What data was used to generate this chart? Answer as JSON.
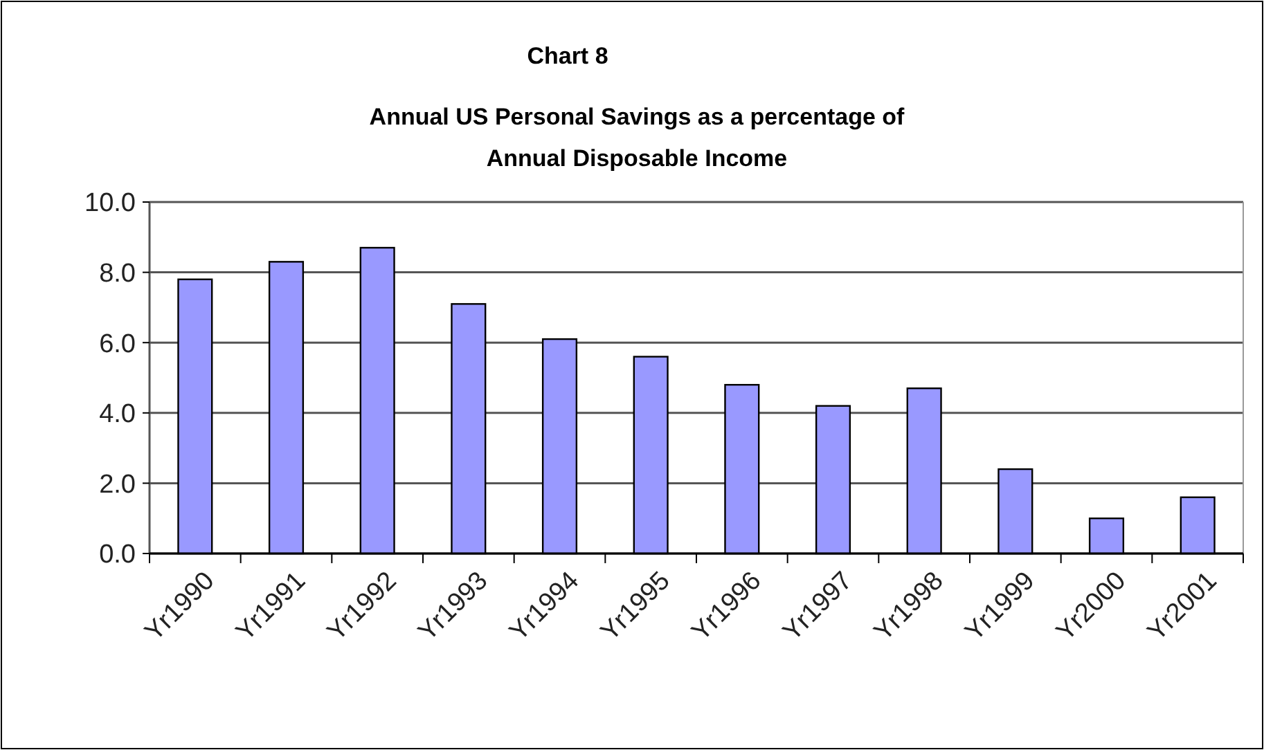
{
  "chart_data": {
    "type": "bar",
    "title": "Chart 8",
    "subtitle": "Annual US Personal Savings as a percentage of Annual Disposable Income",
    "categories": [
      "Yr1990",
      "Yr1991",
      "Yr1992",
      "Yr1993",
      "Yr1994",
      "Yr1995",
      "Yr1996",
      "Yr1997",
      "Yr1998",
      "Yr1999",
      "Yr2000",
      "Yr2001"
    ],
    "values": [
      7.8,
      8.3,
      8.7,
      7.1,
      6.1,
      5.6,
      4.8,
      4.2,
      4.7,
      2.4,
      1.0,
      1.6
    ],
    "color": "#9999ff",
    "ylim": [
      0,
      10
    ],
    "yticks": [
      {
        "value": 0,
        "label": "0.0"
      },
      {
        "value": 2,
        "label": "2.0"
      },
      {
        "value": 4,
        "label": "4.0"
      },
      {
        "value": 6,
        "label": "6.0"
      },
      {
        "value": 8,
        "label": "8.0"
      },
      {
        "value": 10,
        "label": "10.0"
      }
    ],
    "grid": "y"
  }
}
